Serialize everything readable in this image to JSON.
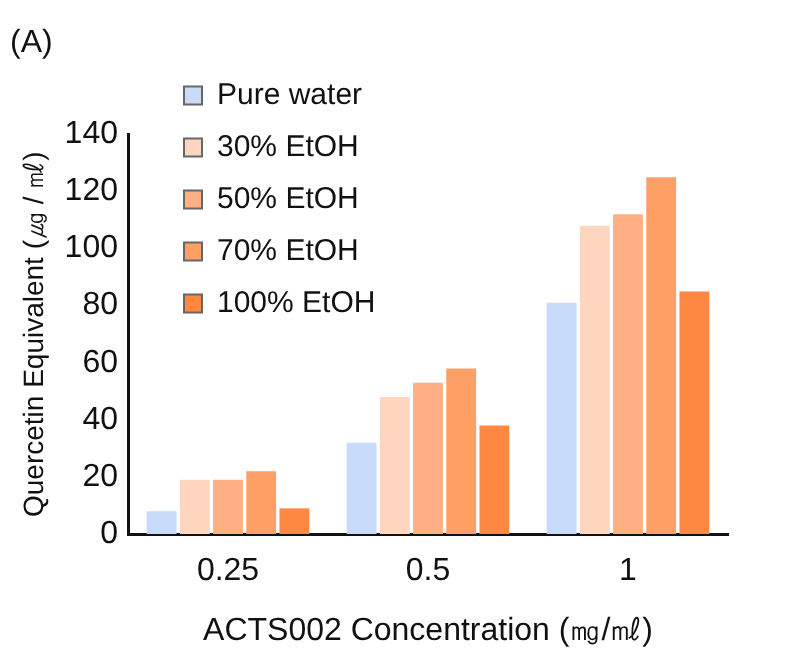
{
  "chart_data": {
    "type": "bar",
    "title": "(A)",
    "xlabel": "ACTS002 Concentration (㎎/㎖)",
    "ylabel": "Quercetin Equivalent (㎍ / ㎖)",
    "categories": [
      "0.25",
      "0.5",
      "1"
    ],
    "series": [
      {
        "name": "Pure water",
        "color": "#c8dcfa",
        "values": [
          8,
          32,
          81
        ]
      },
      {
        "name": "30% EtOH",
        "color": "#fed6c0",
        "values": [
          19,
          48,
          108
        ]
      },
      {
        "name": "50% EtOH",
        "color": "#feb084",
        "values": [
          19,
          53,
          112
        ]
      },
      {
        "name": "70% EtOH",
        "color": "#fe9f65",
        "values": [
          22,
          58,
          125
        ]
      },
      {
        "name": "100% EtOH",
        "color": "#fe8841",
        "values": [
          9,
          38,
          85
        ]
      }
    ],
    "ylim": [
      0,
      140
    ],
    "yticks": [
      0,
      20,
      40,
      60,
      80,
      100,
      120,
      140
    ],
    "grid": false,
    "legend": "top left"
  }
}
